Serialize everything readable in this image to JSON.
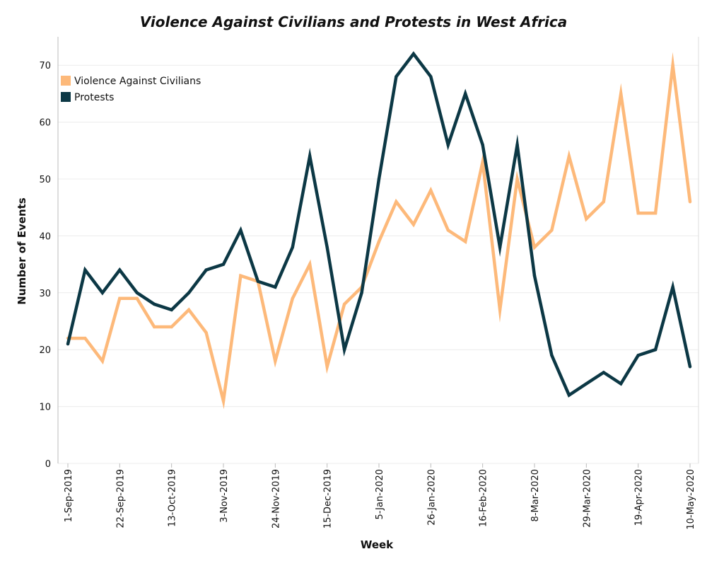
{
  "colors": {
    "violence": "#FDB97A",
    "protests": "#0C3845",
    "grid": "#ececec",
    "axis": "#bbbbbb"
  },
  "chart_data": {
    "type": "line",
    "title": "Violence Against Civilians and Protests in West Africa",
    "xlabel": "Week",
    "ylabel": "Number of Events",
    "ylim": [
      0,
      75
    ],
    "yticks": [
      0,
      10,
      20,
      30,
      40,
      50,
      60,
      70
    ],
    "grid": true,
    "legend_position": "top-left",
    "x": [
      "1-Sep-2019",
      "8-Sep-2019",
      "15-Sep-2019",
      "22-Sep-2019",
      "29-Sep-2019",
      "6-Oct-2019",
      "13-Oct-2019",
      "20-Oct-2019",
      "27-Oct-2019",
      "3-Nov-2019",
      "10-Nov-2019",
      "17-Nov-2019",
      "24-Nov-2019",
      "1-Dec-2019",
      "8-Dec-2019",
      "15-Dec-2019",
      "22-Dec-2019",
      "29-Dec-2019",
      "5-Jan-2020",
      "12-Jan-2020",
      "19-Jan-2020",
      "26-Jan-2020",
      "2-Feb-2020",
      "9-Feb-2020",
      "16-Feb-2020",
      "23-Feb-2020",
      "1-Mar-2020",
      "8-Mar-2020",
      "15-Mar-2020",
      "22-Mar-2020",
      "29-Mar-2020",
      "5-Apr-2020",
      "12-Apr-2020",
      "19-Apr-2020",
      "26-Apr-2020",
      "3-May-2020",
      "10-May-2020"
    ],
    "xtick_labels": [
      "1-Sep-2019",
      "22-Sep-2019",
      "13-Oct-2019",
      "3-Nov-2019",
      "24-Nov-2019",
      "15-Dec-2019",
      "5-Jan-2020",
      "26-Jan-2020",
      "16-Feb-2020",
      "8-Mar-2020",
      "29-Mar-2020",
      "19-Apr-2020",
      "10-May-2020"
    ],
    "series": [
      {
        "name": "Violence Against Civilians",
        "color": "#FDB97A",
        "values": [
          22,
          22,
          18,
          29,
          29,
          24,
          24,
          27,
          23,
          11,
          33,
          32,
          18,
          29,
          35,
          17,
          28,
          31,
          39,
          46,
          42,
          48,
          41,
          39,
          53,
          27,
          50,
          38,
          41,
          54,
          43,
          46,
          65,
          44,
          44,
          70,
          46
        ]
      },
      {
        "name": "Protests",
        "color": "#0C3845",
        "values": [
          21,
          34,
          30,
          34,
          30,
          28,
          27,
          30,
          34,
          35,
          41,
          32,
          31,
          38,
          54,
          38,
          20,
          30,
          50,
          68,
          72,
          68,
          56,
          65,
          56,
          38,
          56,
          33,
          19,
          12,
          14,
          16,
          14,
          19,
          20,
          31,
          17
        ]
      }
    ]
  }
}
